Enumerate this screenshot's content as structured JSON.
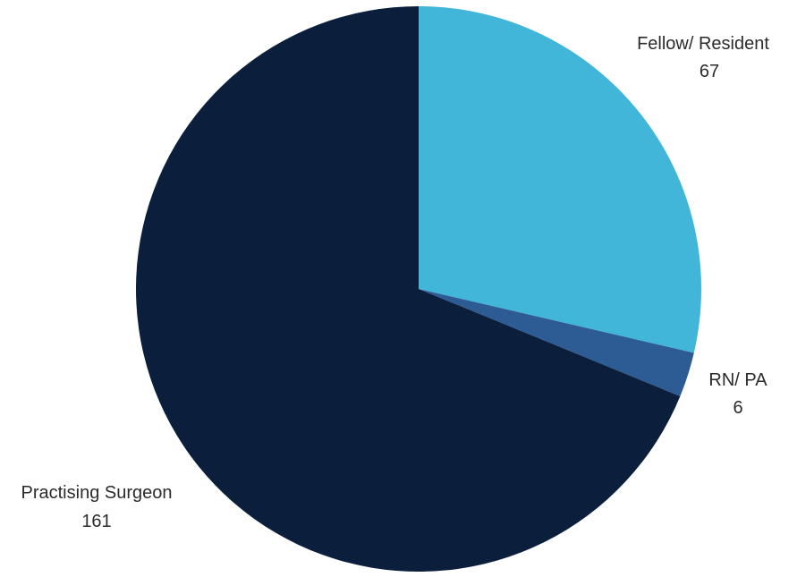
{
  "chart_data": {
    "type": "pie",
    "slices": [
      {
        "label": "Fellow/ Resident",
        "value": 67,
        "display_value": "67",
        "color": "#42b6d9"
      },
      {
        "label": "RN/ PA",
        "value": 6,
        "display_value": "6",
        "color": "#2d5c94"
      },
      {
        "label": "Practising Surgeon",
        "value": 161,
        "display_value": "161",
        "color": "#0b1e3c"
      }
    ],
    "start_angle_deg": 0,
    "direction": "clockwise",
    "legend": "none",
    "data_labels": "outside"
  }
}
